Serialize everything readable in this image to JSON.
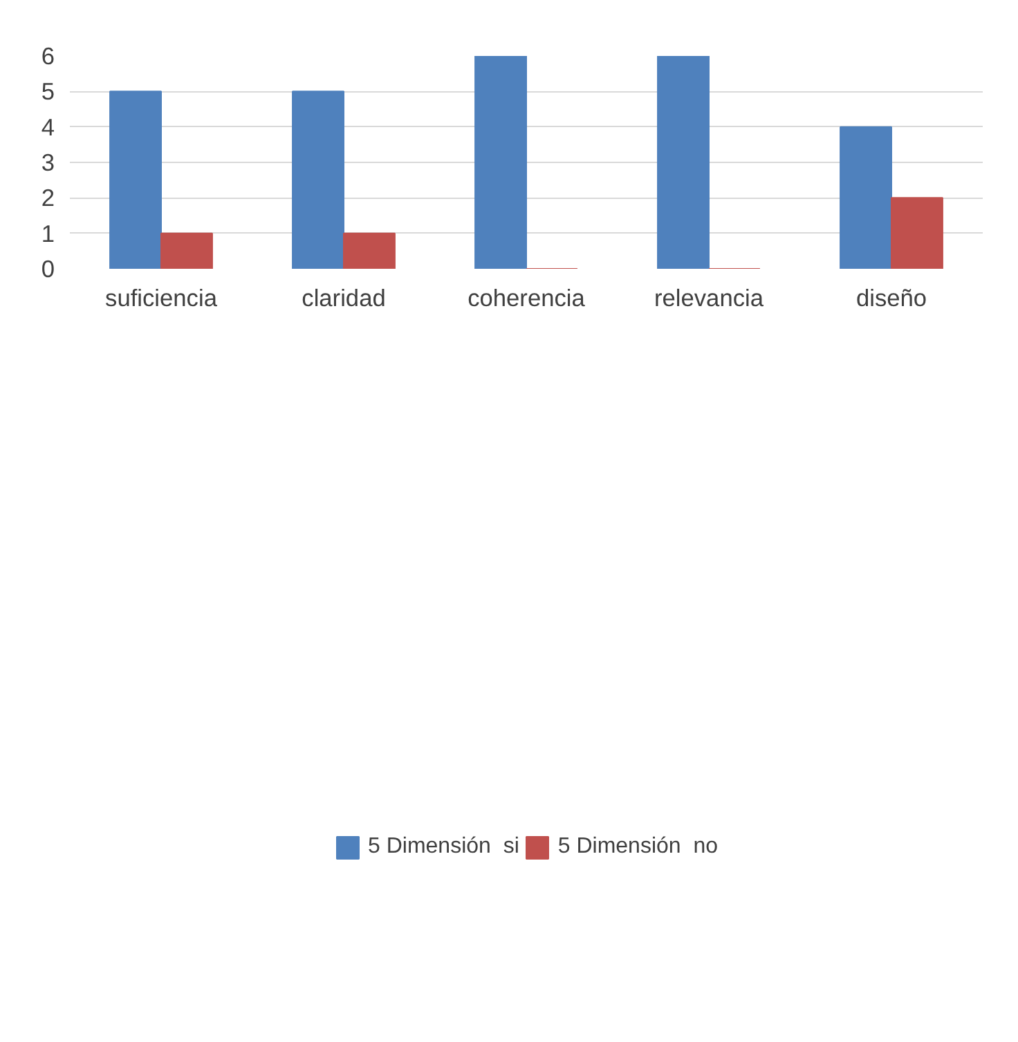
{
  "chart_data": {
    "type": "bar",
    "categories": [
      "suficiencia",
      "claridad",
      "coherencia",
      "relevancia",
      "diseño"
    ],
    "series": [
      {
        "name": "5 Dimensión  si",
        "color": "#4f81bd",
        "values": [
          5,
          5,
          6,
          6,
          4
        ]
      },
      {
        "name": "5 Dimensión  no",
        "color": "#c0504d",
        "values": [
          1,
          1,
          0,
          0,
          2
        ]
      }
    ],
    "ylim": [
      0,
      6
    ],
    "yticks": [
      0,
      1,
      2,
      3,
      4,
      5,
      6
    ],
    "grid": "y",
    "legend": "bottom"
  }
}
